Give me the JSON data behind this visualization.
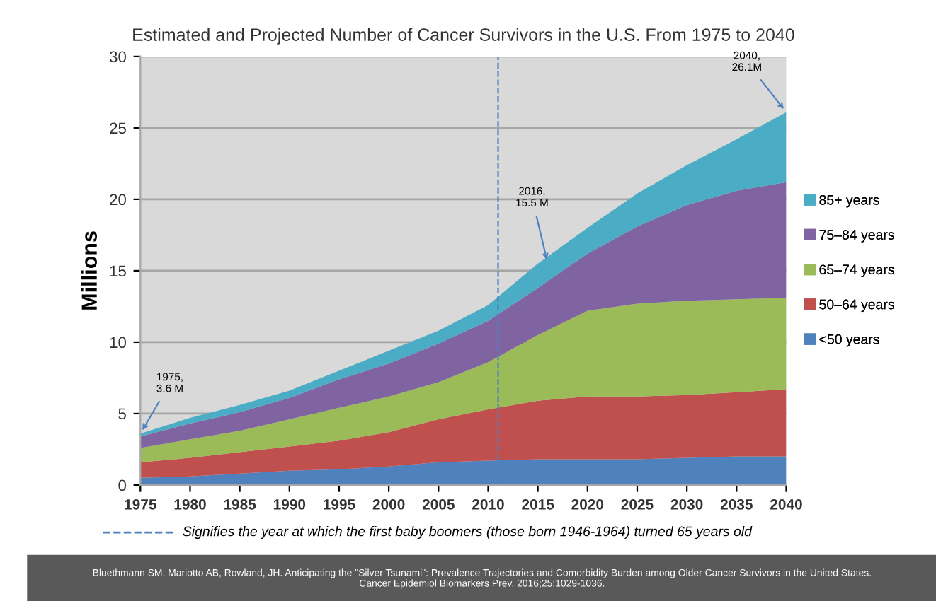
{
  "chart_data": {
    "type": "area",
    "stacked": true,
    "title": "Estimated and Projected Number of Cancer Survivors in the U.S. From 1975 to 2040",
    "ylabel": "Millions",
    "x": [
      1975,
      1980,
      1985,
      1990,
      1995,
      2000,
      2005,
      2010,
      2015,
      2020,
      2025,
      2030,
      2035,
      2040
    ],
    "series": [
      {
        "name": "<50 years",
        "color": "#4f81bd",
        "values": [
          0.5,
          0.6,
          0.8,
          1.0,
          1.1,
          1.3,
          1.6,
          1.7,
          1.8,
          1.8,
          1.8,
          1.9,
          2.0,
          2.0
        ]
      },
      {
        "name": "50–64 years",
        "color": "#c0504d",
        "values": [
          1.1,
          1.3,
          1.5,
          1.7,
          2.0,
          2.4,
          3.0,
          3.6,
          4.1,
          4.4,
          4.4,
          4.4,
          4.5,
          4.7
        ]
      },
      {
        "name": "65–74 years",
        "color": "#9bbb59",
        "values": [
          1.0,
          1.3,
          1.5,
          1.9,
          2.3,
          2.5,
          2.6,
          3.3,
          4.6,
          6.0,
          6.5,
          6.6,
          6.5,
          6.4
        ]
      },
      {
        "name": "75–84 years",
        "color": "#8064a2",
        "values": [
          0.8,
          1.1,
          1.3,
          1.5,
          2.0,
          2.3,
          2.7,
          2.9,
          3.3,
          4.0,
          5.4,
          6.7,
          7.6,
          8.1
        ]
      },
      {
        "name": "85+ years",
        "color": "#4bacc6",
        "values": [
          0.2,
          0.4,
          0.5,
          0.5,
          0.6,
          0.9,
          0.9,
          1.1,
          1.7,
          1.8,
          2.3,
          2.8,
          3.6,
          4.9
        ]
      }
    ],
    "xlim": [
      1975,
      2040
    ],
    "xticks": [
      1975,
      1980,
      1985,
      1990,
      1995,
      2000,
      2005,
      2010,
      2015,
      2020,
      2025,
      2030,
      2035,
      2040
    ],
    "ylim": [
      0,
      30
    ],
    "yticks": [
      0,
      5,
      10,
      15,
      20,
      25,
      30
    ],
    "grid": "y",
    "legend": "right",
    "ref_lines": [
      {
        "axis": "x",
        "value": 2011,
        "color": "#4f81bd",
        "line_style": "dashed"
      }
    ],
    "annotations": [
      "Signifies the year at which the first baby boomers (those born 1946-1964) turned 65 years old",
      {
        "text": "1975,\n3.6 M",
        "x": 1975,
        "y": 3.6
      },
      {
        "text": "2016,\n15.5 M",
        "x": 2016,
        "y": 15.5
      },
      {
        "text": "2040,\n26.1M",
        "x": 2040,
        "y": 26.1
      },
      "Bluethmann SM, Mariotto AB, Rowland, JH. Anticipating the \"Silver Tsunami\": Prevalence Trajectories and Comorbidity Burden among Older Cancer Survivors in the United States.\nCancer Epidemiol Biomarkers Prev. 2016;25:1029-1036."
    ]
  }
}
